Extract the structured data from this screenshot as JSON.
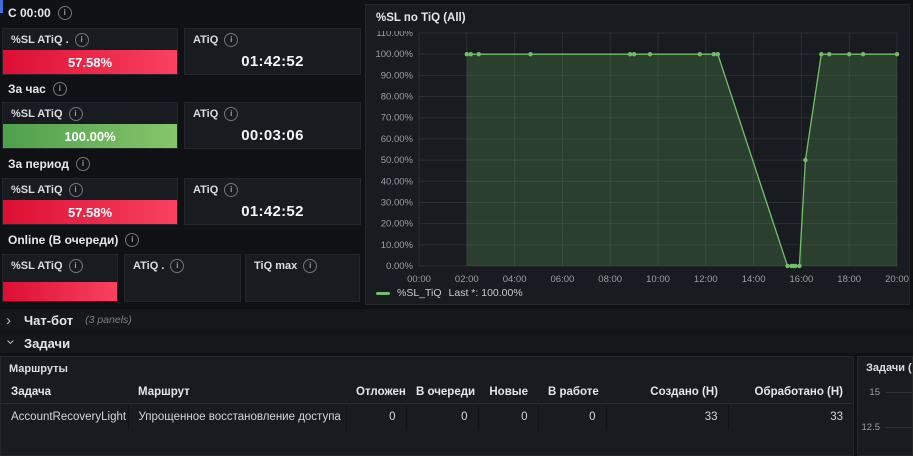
{
  "colors": {
    "red_bar_left": "#dc0f33",
    "red_bar_right": "#fa4160",
    "green_bar_left": "#4fa04c",
    "green_bar_right": "#86c56b",
    "series_green": "#73bf69",
    "panel_bg": "#181b1f"
  },
  "sections": [
    {
      "label": "С 00:00",
      "panels": [
        {
          "title": "%SL ATiQ .",
          "value": "57.58%",
          "kind": "bar-red"
        },
        {
          "title": "ATiQ",
          "value": "01:42:52",
          "kind": "stat"
        }
      ]
    },
    {
      "label": "За час",
      "panels": [
        {
          "title": "%SL ATiQ",
          "value": "100.00%",
          "kind": "bar-green"
        },
        {
          "title": "ATiQ",
          "value": "00:03:06",
          "kind": "stat"
        }
      ]
    },
    {
      "label": "За период",
      "panels": [
        {
          "title": "%SL ATiQ",
          "value": "57.58%",
          "kind": "bar-red"
        },
        {
          "title": "ATiQ",
          "value": "01:42:52",
          "kind": "stat"
        }
      ]
    },
    {
      "label": "Online (В очереди)",
      "panels": [
        {
          "title": "%SL ATiQ",
          "value": "",
          "kind": "bar-red-empty"
        },
        {
          "title": "ATiQ .",
          "value": "",
          "kind": "empty"
        },
        {
          "title": "TiQ max",
          "value": "",
          "kind": "empty"
        }
      ]
    }
  ],
  "chart_data": {
    "type": "line",
    "title": "%SL по TiQ (All)",
    "x_ticks": [
      "00:00",
      "02:00",
      "04:00",
      "06:00",
      "08:00",
      "10:00",
      "12:00",
      "14:00",
      "16:00",
      "18:00",
      "20:00"
    ],
    "y_ticks": [
      "110.00%",
      "100.00%",
      "90.00%",
      "80.00%",
      "70.00%",
      "60.00%",
      "50.00%",
      "40.00%",
      "30.00%",
      "20.00%",
      "10.00%",
      "0.00%"
    ],
    "ylim": [
      0,
      110
    ],
    "xlim_minutes": [
      0,
      1200
    ],
    "grid": true,
    "legend_position": "bottom-left",
    "legend": {
      "series": "%SL_TiQ",
      "stat": "Last *: 100.00%"
    },
    "series": [
      {
        "name": "%SL_TiQ",
        "color": "#73bf69",
        "points": [
          [
            "02:00",
            100
          ],
          [
            "02:10",
            100
          ],
          [
            "02:30",
            100
          ],
          [
            "04:40",
            100
          ],
          [
            "08:50",
            100
          ],
          [
            "09:00",
            100
          ],
          [
            "09:40",
            100
          ],
          [
            "11:45",
            100
          ],
          [
            "12:20",
            100
          ],
          [
            "12:30",
            100
          ],
          [
            "15:25",
            0
          ],
          [
            "15:35",
            0
          ],
          [
            "15:40",
            0
          ],
          [
            "15:45",
            0
          ],
          [
            "15:55",
            0
          ],
          [
            "16:10",
            50
          ],
          [
            "16:50",
            100
          ],
          [
            "17:10",
            100
          ],
          [
            "18:00",
            100
          ],
          [
            "18:35",
            100
          ],
          [
            "20:00",
            100
          ]
        ]
      }
    ]
  },
  "rows": [
    {
      "chevron": "›",
      "label": "Чат-бот",
      "meta": "(3 panels)"
    },
    {
      "chevron": "›",
      "label": "Задачи",
      "meta": ""
    }
  ],
  "table_panel": {
    "title": "Маршруты",
    "columns": [
      "Задача",
      "Маршрут",
      "Отложены",
      "В очереди",
      "Новые",
      "В работе",
      "Создано (Н)",
      "Обработано (Н)"
    ],
    "rows": [
      [
        "AccountRecoveryLight",
        "Упрощенное восстановление доступа",
        "0",
        "0",
        "0",
        "0",
        "33",
        "33"
      ]
    ]
  },
  "mini_chart": {
    "title": "Задачи (All)",
    "y_ticks": [
      "15",
      "12.5"
    ]
  }
}
